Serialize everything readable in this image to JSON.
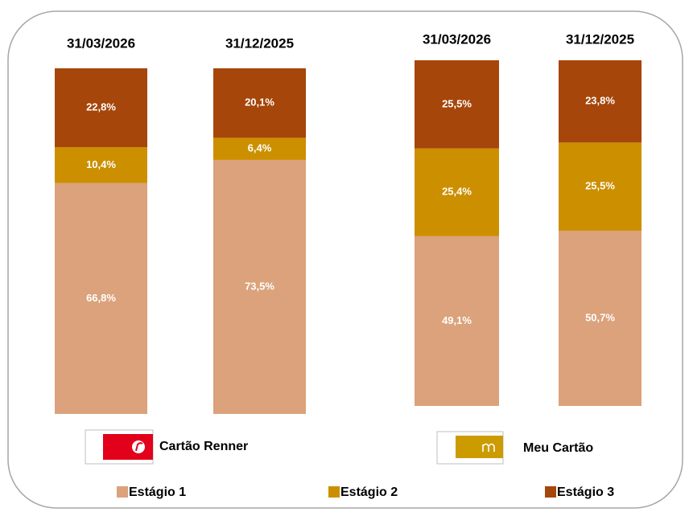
{
  "chart_data": {
    "type": "bar",
    "stacked": true,
    "categories": [
      "31/03/2026",
      "31/12/2025",
      "31/03/2026",
      "31/12/2025"
    ],
    "groups": [
      "Cartão Renner",
      "Meu Cartão"
    ],
    "series": [
      {
        "name": "Estágio 1",
        "color": "#dba27b",
        "values": [
          66.8,
          73.5,
          49.1,
          50.7
        ],
        "value_labels": [
          "66,8%",
          "73,5%",
          "49,1%",
          "50,7%"
        ]
      },
      {
        "name": "Estágio 2",
        "color": "#cc8f00",
        "values": [
          10.4,
          6.4,
          25.4,
          25.5
        ],
        "value_labels": [
          "10,4%",
          "6,4%",
          "25,4%",
          "25,5%"
        ]
      },
      {
        "name": "Estágio 3",
        "color": "#a6460a",
        "values": [
          22.8,
          20.1,
          25.5,
          23.8
        ],
        "value_labels": [
          "22,8%",
          "20,1%",
          "25,5%",
          "23,8%"
        ]
      }
    ]
  }
}
